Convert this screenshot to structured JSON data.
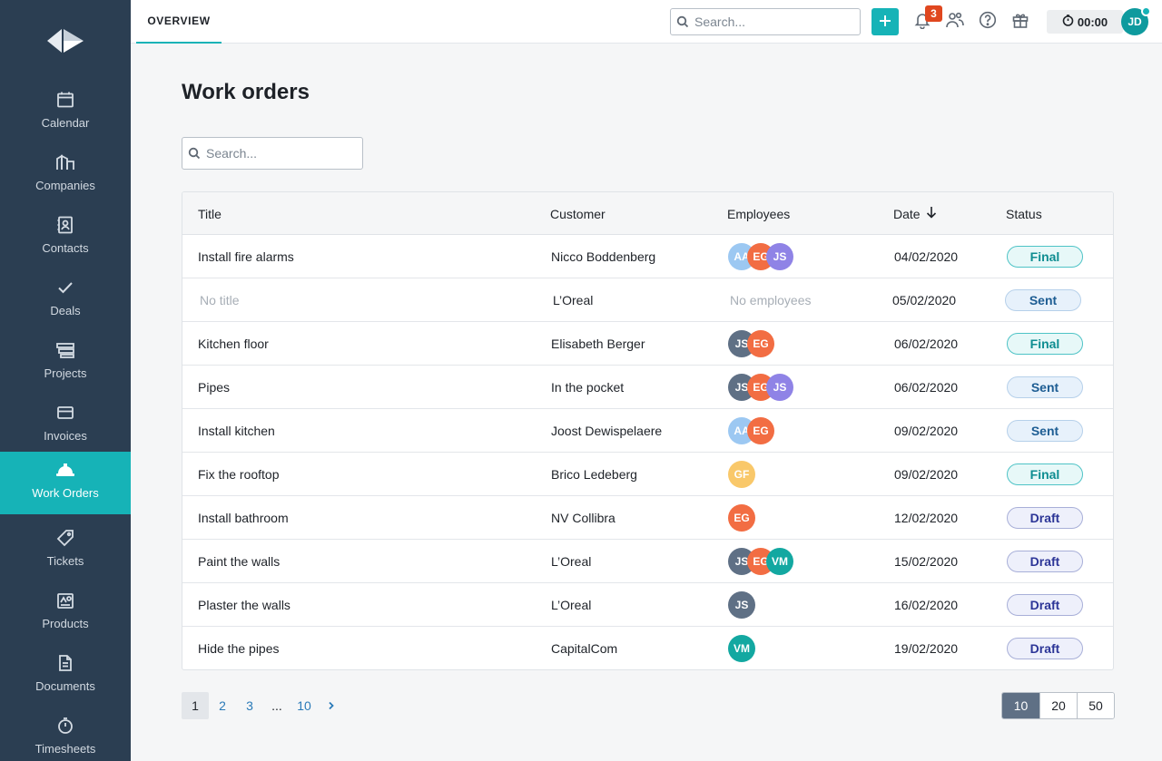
{
  "sidebar": {
    "items": [
      {
        "label": "Calendar",
        "icon": "calendar-icon"
      },
      {
        "label": "Companies",
        "icon": "companies-icon"
      },
      {
        "label": "Contacts",
        "icon": "contacts-icon"
      },
      {
        "label": "Deals",
        "icon": "checkmark-icon"
      },
      {
        "label": "Projects",
        "icon": "projects-icon"
      },
      {
        "label": "Invoices",
        "icon": "credit-card-icon"
      },
      {
        "label": "Work Orders",
        "icon": "hard-hat-icon",
        "active": true
      },
      {
        "label": "Tickets",
        "icon": "tag-icon"
      },
      {
        "label": "Products",
        "icon": "products-icon"
      },
      {
        "label": "Documents",
        "icon": "document-icon"
      },
      {
        "label": "Timesheets",
        "icon": "stopwatch-icon"
      }
    ]
  },
  "topbar": {
    "tab": "OVERVIEW",
    "search_placeholder": "Search...",
    "notification_count": "3",
    "timer": "00:00",
    "user_initials": "JD"
  },
  "main": {
    "title": "Work orders",
    "search_placeholder": "Search..."
  },
  "table": {
    "headers": {
      "title": "Title",
      "customer": "Customer",
      "employees": "Employees",
      "date": "Date",
      "status": "Status"
    },
    "rows": [
      {
        "title": "Install fire alarms",
        "customer": "Nicco Boddenberg",
        "employees": [
          "AA",
          "EG",
          "JS"
        ],
        "date": "04/02/2020",
        "status": "Final"
      },
      {
        "title": "No title",
        "customer": "L’Oreal",
        "employees_text": "No employees",
        "date": "05/02/2020",
        "status": "Sent"
      },
      {
        "title": "Kitchen floor",
        "customer": "Elisabeth Berger",
        "employees": [
          "JS",
          "EG"
        ],
        "date": "06/02/2020",
        "status": "Final"
      },
      {
        "title": "Pipes",
        "customer": "In the pocket",
        "employees": [
          "JS",
          "EG",
          "JS"
        ],
        "date": "06/02/2020",
        "status": "Sent"
      },
      {
        "title": "Install kitchen",
        "customer": "Joost Dewispelaere",
        "employees": [
          "AA",
          "EG"
        ],
        "date": "09/02/2020",
        "status": "Sent"
      },
      {
        "title": "Fix the rooftop",
        "customer": "Brico Ledeberg",
        "employees": [
          "GF"
        ],
        "date": "09/02/2020",
        "status": "Final"
      },
      {
        "title": "Install bathroom",
        "customer": "NV Collibra",
        "employees": [
          "EG"
        ],
        "date": "12/02/2020",
        "status": "Draft"
      },
      {
        "title": "Paint the walls",
        "customer": "L’Oreal",
        "employees": [
          "JS",
          "EG",
          "VM"
        ],
        "date": "15/02/2020",
        "status": "Draft"
      },
      {
        "title": "Plaster the walls",
        "customer": "L’Oreal",
        "employees": [
          "JS"
        ],
        "date": "16/02/2020",
        "status": "Draft"
      },
      {
        "title": "Hide the pipes",
        "customer": "CapitalCom",
        "employees": [
          "VM"
        ],
        "date": "19/02/2020",
        "status": "Draft"
      }
    ]
  },
  "pagination": {
    "pages": [
      "1",
      "2",
      "3",
      "...",
      "10"
    ],
    "current": "1",
    "next_icon": "chevron-right-icon"
  },
  "page_size": {
    "options": [
      "10",
      "20",
      "50"
    ],
    "selected": "10"
  },
  "colors": {
    "sidebar": "#2b3e52",
    "accent": "#16b3b7",
    "avatar_AA": "#9cc8f2",
    "avatar_EG": "#f26d43",
    "avatar_JS_light": "#8f83e6",
    "avatar_JS_dark": "#5f7085",
    "avatar_GF": "#f9c86a",
    "avatar_VM": "#13a8a1"
  }
}
